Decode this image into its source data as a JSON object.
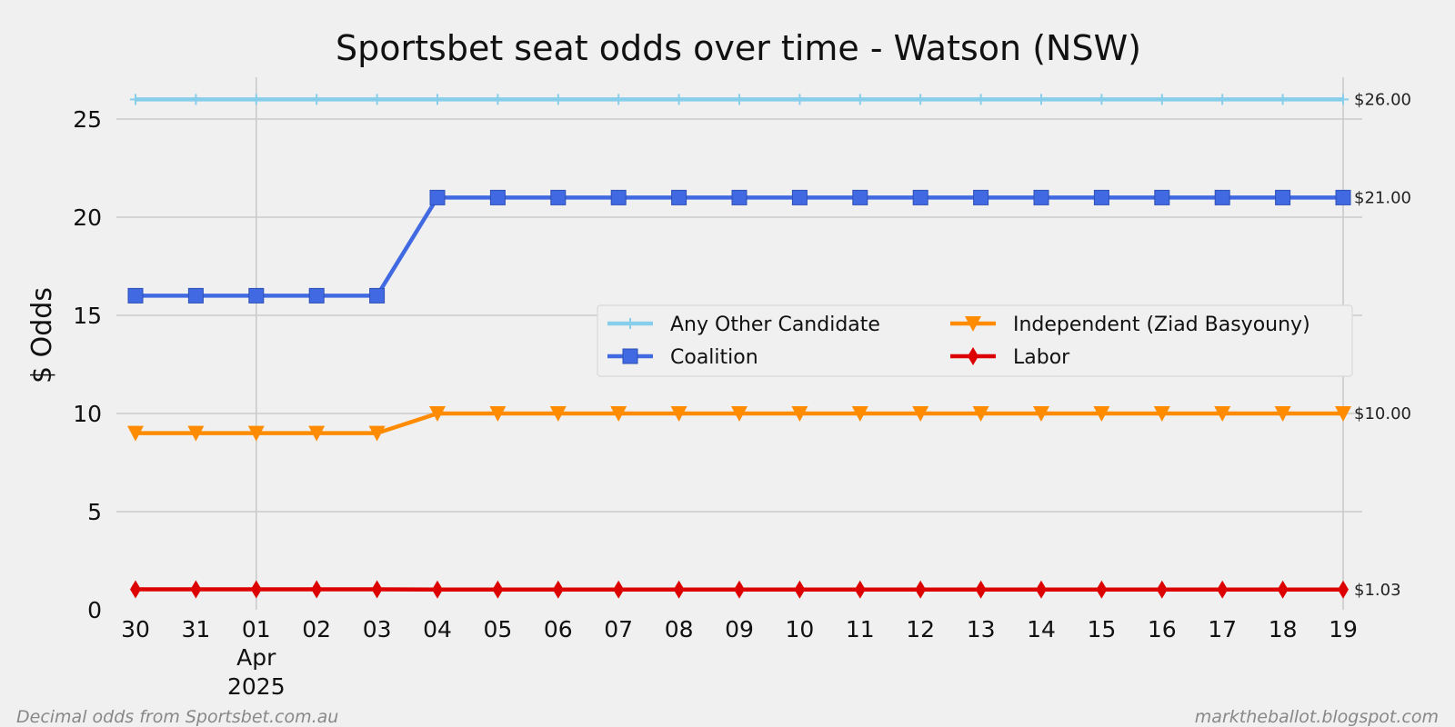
{
  "chart_data": {
    "type": "line",
    "title": "Sportsbet seat odds over time - Watson (NSW)",
    "ylabel": "$ Odds",
    "xlabel": "",
    "ylim": [
      0,
      26
    ],
    "yticks": [
      0,
      5,
      10,
      15,
      20,
      25
    ],
    "x": [
      "2025-03-30",
      "2025-03-31",
      "2025-04-01",
      "2025-04-02",
      "2025-04-03",
      "2025-04-04",
      "2025-04-05",
      "2025-04-06",
      "2025-04-07",
      "2025-04-08",
      "2025-04-09",
      "2025-04-10",
      "2025-04-11",
      "2025-04-12",
      "2025-04-13",
      "2025-04-14",
      "2025-04-15",
      "2025-04-16",
      "2025-04-17",
      "2025-04-18",
      "2025-04-19"
    ],
    "x_tick_labels": [
      "30",
      "31",
      "01",
      "02",
      "03",
      "04",
      "05",
      "06",
      "07",
      "08",
      "09",
      "10",
      "11",
      "12",
      "13",
      "14",
      "15",
      "16",
      "17",
      "18",
      "19"
    ],
    "x_month_label": "Apr",
    "x_year_label": "2025",
    "grid": true,
    "legend_position": "center-right",
    "series": [
      {
        "name": "Any Other Candidate",
        "color": "#87ceeb",
        "marker": "plus",
        "values": [
          26,
          26,
          26,
          26,
          26,
          26,
          26,
          26,
          26,
          26,
          26,
          26,
          26,
          26,
          26,
          26,
          26,
          26,
          26,
          26,
          26
        ],
        "end_label": "$26.00"
      },
      {
        "name": "Coalition",
        "color": "#4169e1",
        "marker": "square",
        "values": [
          16,
          16,
          16,
          16,
          16,
          21,
          21,
          21,
          21,
          21,
          21,
          21,
          21,
          21,
          21,
          21,
          21,
          21,
          21,
          21,
          21
        ],
        "end_label": "$21.00"
      },
      {
        "name": "Independent (Ziad Basyouny)",
        "color": "#ff8c00",
        "marker": "triangle-down",
        "values": [
          9,
          9,
          9,
          9,
          9,
          10,
          10,
          10,
          10,
          10,
          10,
          10,
          10,
          10,
          10,
          10,
          10,
          10,
          10,
          10,
          10
        ],
        "end_label": "$10.00"
      },
      {
        "name": "Labor",
        "color": "#dd0000",
        "marker": "diamond",
        "values": [
          1.04,
          1.04,
          1.04,
          1.04,
          1.04,
          1.03,
          1.03,
          1.03,
          1.03,
          1.03,
          1.03,
          1.03,
          1.03,
          1.03,
          1.03,
          1.03,
          1.03,
          1.03,
          1.03,
          1.03,
          1.03
        ],
        "end_label": "$1.03"
      }
    ]
  },
  "footer": {
    "left": "Decimal odds from Sportsbet.com.au",
    "right": "marktheballot.blogspot.com"
  }
}
